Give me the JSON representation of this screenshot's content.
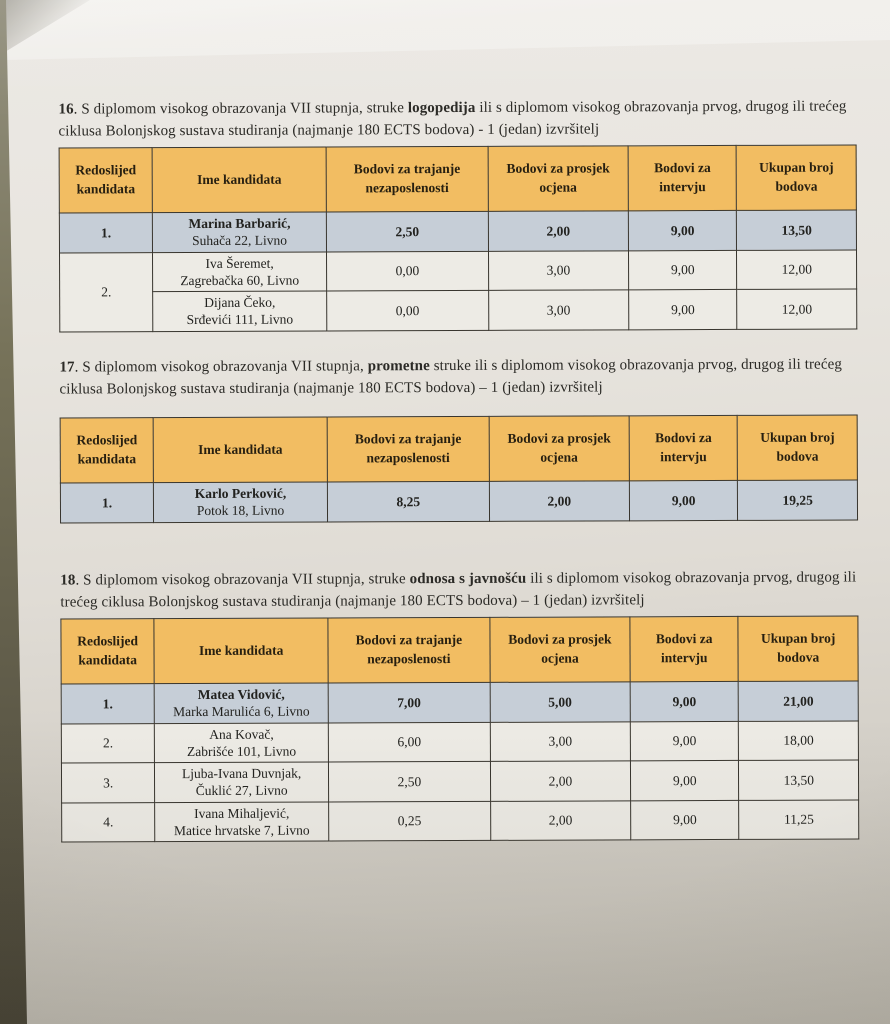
{
  "colors": {
    "table_header_bg": "#f2bd62",
    "highlight_row_bg": "#c6ced7",
    "paper": "#e8e5df",
    "photo_edge": "#5e5a48"
  },
  "sections": [
    {
      "number": "16",
      "paragraph_segments": [
        {
          "text": "16",
          "bold": true
        },
        {
          "text": ". S diplomom visokog obrazovanja VII stupnja, struke ",
          "bold": false
        },
        {
          "text": "logopedija",
          "bold": true
        },
        {
          "text": " ili s diplomom visokog obrazovanja prvog, drugog ili trećeg ciklusa Bolonjskog sustava studiranja (najmanje 180 ECTS bodova) - 1 (jedan) izvršitelj",
          "bold": false
        }
      ],
      "columns": [
        "Redoslijed kandidata",
        "Ime kandidata",
        "Bodovi za trajanje nezaposlenosti",
        "Bodovi za prosjek ocjena",
        "Bodovi za intervju",
        "Ukupan broj bodova"
      ],
      "rows": [
        {
          "rank": "1.",
          "rank_rowspan": 1,
          "name": "Marina Barbarić,",
          "address": "Suhača 22, Livno",
          "scores": [
            "2,50",
            "2,00",
            "9,00",
            "13,50"
          ],
          "highlighted": true
        },
        {
          "rank": "2.",
          "rank_rowspan": 2,
          "name": "Iva Šeremet,",
          "address": "Zagrebačka 60, Livno",
          "scores": [
            "0,00",
            "3,00",
            "9,00",
            "12,00"
          ],
          "highlighted": false
        },
        {
          "rank": null,
          "rank_rowspan": 0,
          "name": "Dijana Čeko,",
          "address": "Srđevići 111, Livno",
          "scores": [
            "0,00",
            "3,00",
            "9,00",
            "12,00"
          ],
          "highlighted": false
        }
      ]
    },
    {
      "number": "17",
      "paragraph_segments": [
        {
          "text": "17",
          "bold": true
        },
        {
          "text": ". S diplomom visokog obrazovanja VII stupnja, ",
          "bold": false
        },
        {
          "text": "prometne",
          "bold": true
        },
        {
          "text": " struke ili s diplomom visokog obrazovanja prvog, drugog ili trećeg ciklusa Bolonjskog sustava studiranja (najmanje 180 ECTS bodova) – 1 (jedan) izvršitelj",
          "bold": false
        }
      ],
      "columns": [
        "Redoslijed kandidata",
        "Ime kandidata",
        "Bodovi za trajanje nezaposlenosti",
        "Bodovi za prosjek ocjena",
        "Bodovi za intervju",
        "Ukupan broj bodova"
      ],
      "rows": [
        {
          "rank": "1.",
          "rank_rowspan": 1,
          "name": "Karlo Perković,",
          "address": "Potok 18, Livno",
          "scores": [
            "8,25",
            "2,00",
            "9,00",
            "19,25"
          ],
          "highlighted": true
        }
      ]
    },
    {
      "number": "18",
      "paragraph_segments": [
        {
          "text": "18",
          "bold": true
        },
        {
          "text": ". S diplomom visokog obrazovanja VII stupnja, struke ",
          "bold": false
        },
        {
          "text": "odnosa s javnošću",
          "bold": true
        },
        {
          "text": " ili s diplomom visokog obrazovanja prvog, drugog ili trećeg ciklusa Bolonjskog sustava studiranja (najmanje 180 ECTS bodova) – 1 (jedan) izvršitelj",
          "bold": false
        }
      ],
      "columns": [
        "Redoslijed kandidata",
        "Ime kandidata",
        "Bodovi za trajanje nezaposlenosti",
        "Bodovi za prosjek ocjena",
        "Bodovi za intervju",
        "Ukupan broj bodova"
      ],
      "rows": [
        {
          "rank": "1.",
          "rank_rowspan": 1,
          "name": "Matea Vidović,",
          "address": "Marka Marulića 6, Livno",
          "scores": [
            "7,00",
            "5,00",
            "9,00",
            "21,00"
          ],
          "highlighted": true
        },
        {
          "rank": "2.",
          "rank_rowspan": 1,
          "name": "Ana Kovač,",
          "address": "Zabrišće 101, Livno",
          "scores": [
            "6,00",
            "3,00",
            "9,00",
            "18,00"
          ],
          "highlighted": false
        },
        {
          "rank": "3.",
          "rank_rowspan": 1,
          "name": "Ljuba-Ivana Duvnjak,",
          "address": "Čuklić 27, Livno",
          "scores": [
            "2,50",
            "2,00",
            "9,00",
            "13,50"
          ],
          "highlighted": false
        },
        {
          "rank": "4.",
          "rank_rowspan": 1,
          "name": "Ivana Mihaljević,",
          "address": "Matice hrvatske 7, Livno",
          "scores": [
            "0,25",
            "2,00",
            "9,00",
            "11,25"
          ],
          "highlighted": false
        }
      ]
    }
  ]
}
